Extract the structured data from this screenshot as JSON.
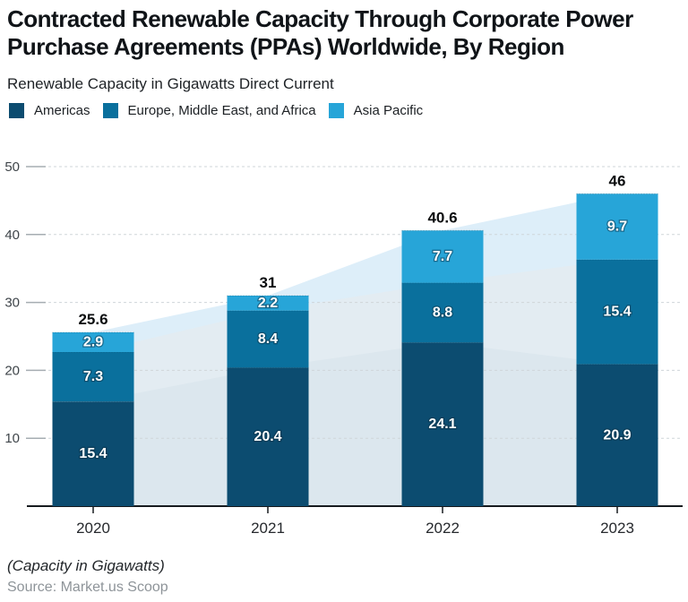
{
  "header": {
    "title": "Contracted Renewable Capacity Through Corporate Power\nPurchase Agreements (PPAs) Worldwide, By Region",
    "subtitle": "Renewable Capacity in Gigawatts Direct Current"
  },
  "footer": {
    "note": "(Capacity in Gigawatts)",
    "source": "Source: Market.us Scoop"
  },
  "chart_data": {
    "type": "bar",
    "stacked": true,
    "title": "Contracted Renewable Capacity Through Corporate Power Purchase Agreements (PPAs) Worldwide, By Region",
    "subtitle": "Renewable Capacity in Gigawatts Direct Current",
    "unit": "Gigawatts (GW)",
    "categories": [
      "2020",
      "2021",
      "2022",
      "2023"
    ],
    "series": [
      {
        "name": "Americas",
        "color": "#0c4c70",
        "pale_color": "#dce7ee",
        "values": [
          15.4,
          20.4,
          24.1,
          20.9
        ]
      },
      {
        "name": "Europe, Middle East, and Africa",
        "color": "#0a709d",
        "pale_color": "#e3ecf2",
        "values": [
          7.3,
          8.4,
          8.8,
          15.4
        ]
      },
      {
        "name": "Asia Pacific",
        "color": "#27a5d8",
        "pale_color": "#ddeef9",
        "values": [
          2.9,
          2.2,
          7.7,
          9.7
        ]
      }
    ],
    "totals": [
      25.6,
      31,
      40.6,
      46
    ],
    "yticks": [
      10,
      20,
      30,
      40,
      50
    ],
    "ylim": [
      0,
      50
    ],
    "grid": true,
    "legend_position": "top",
    "background_area": true,
    "style": {
      "grid_color": "#cfd5d9",
      "tick_color": "#a6adb2",
      "axis_color": "#171b1f",
      "ytick_label_color": "#3f454a",
      "xtick_label_color": "#26292d",
      "total_label_color": "#0b0d0f",
      "segment_label_color": "#ffffff"
    }
  }
}
